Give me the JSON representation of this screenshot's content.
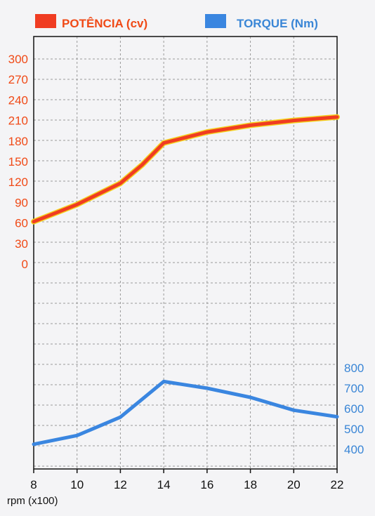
{
  "chart_data": {
    "type": "line",
    "xlabel": "rpm (x100)",
    "x_ticks": [
      8,
      10,
      12,
      14,
      16,
      18,
      20,
      22
    ],
    "xlim": [
      8,
      22
    ],
    "grid": true,
    "legend_position": "top",
    "series": [
      {
        "name": "POTÊNCIA (cv)",
        "axis": "left",
        "color": "#f03c22",
        "x": [
          8,
          10,
          12,
          13,
          14,
          16,
          18,
          20,
          22
        ],
        "values": [
          62,
          87,
          118,
          145,
          177,
          193,
          203,
          210,
          215
        ]
      },
      {
        "name": "TORQUE (Nm)",
        "axis": "right",
        "color": "#3a86e0",
        "x": [
          8,
          10,
          12,
          14,
          16,
          18,
          20,
          22
        ],
        "values": [
          425,
          468,
          558,
          733,
          700,
          655,
          592,
          560
        ]
      }
    ],
    "y_left": {
      "ticks": [
        0,
        30,
        60,
        90,
        120,
        150,
        180,
        210,
        240,
        270,
        300
      ],
      "color": "#f04a17"
    },
    "y_right": {
      "ticks": [
        400,
        500,
        600,
        700,
        800
      ],
      "color": "#3a86d6"
    }
  }
}
